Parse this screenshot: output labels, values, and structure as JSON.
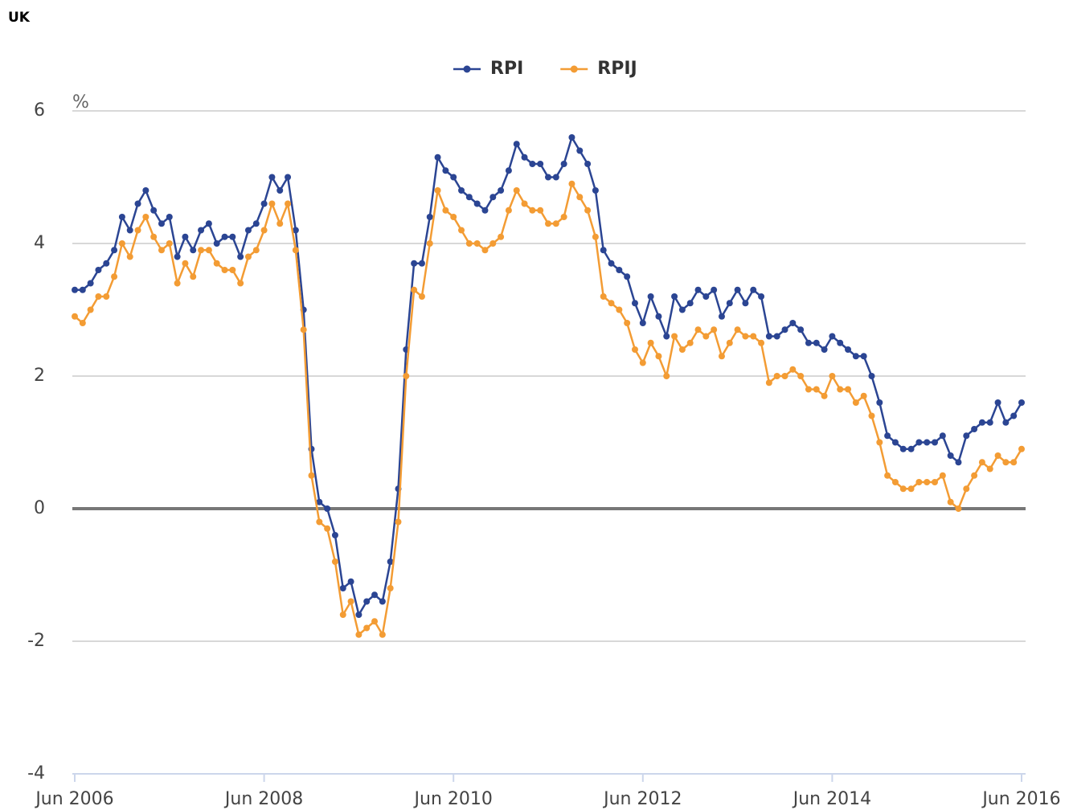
{
  "title": "UK",
  "chart_data": {
    "type": "line",
    "y_axis_label": "%",
    "categories": [
      "Jun 2006",
      null,
      null,
      null,
      null,
      null,
      null,
      null,
      null,
      null,
      null,
      null,
      null,
      null,
      null,
      null,
      null,
      null,
      null,
      null,
      null,
      null,
      null,
      null,
      "Jun 2008",
      null,
      null,
      null,
      null,
      null,
      null,
      null,
      null,
      null,
      null,
      null,
      null,
      null,
      null,
      null,
      null,
      null,
      null,
      null,
      null,
      null,
      null,
      null,
      "Jun 2010",
      null,
      null,
      null,
      null,
      null,
      null,
      null,
      null,
      null,
      null,
      null,
      null,
      null,
      null,
      null,
      null,
      null,
      null,
      null,
      null,
      null,
      null,
      null,
      "Jun 2012",
      null,
      null,
      null,
      null,
      null,
      null,
      null,
      null,
      null,
      null,
      null,
      null,
      null,
      null,
      null,
      null,
      null,
      null,
      null,
      null,
      null,
      null,
      null,
      "Jun 2014",
      null,
      null,
      null,
      null,
      null,
      null,
      null,
      null,
      null,
      null,
      null,
      null,
      null,
      null,
      null,
      null,
      null,
      null,
      null,
      null,
      null,
      null,
      null,
      "Jun 2016"
    ],
    "series": [
      {
        "name": "RPI",
        "color": "#2b4593",
        "values": [
          3.3,
          3.3,
          3.4,
          3.6,
          3.7,
          3.9,
          4.4,
          4.2,
          4.6,
          4.8,
          4.5,
          4.3,
          4.4,
          3.8,
          4.1,
          3.9,
          4.2,
          4.3,
          4.0,
          4.1,
          4.1,
          3.8,
          4.2,
          4.3,
          4.6,
          5.0,
          4.8,
          5.0,
          4.2,
          3.0,
          0.9,
          0.1,
          0.0,
          -0.4,
          -1.2,
          -1.1,
          -1.6,
          -1.4,
          -1.3,
          -1.4,
          -0.8,
          0.3,
          2.4,
          3.7,
          3.7,
          4.4,
          5.3,
          5.1,
          5.0,
          4.8,
          4.7,
          4.6,
          4.5,
          4.7,
          4.8,
          5.1,
          5.5,
          5.3,
          5.2,
          5.2,
          5.0,
          5.0,
          5.2,
          5.6,
          5.4,
          5.2,
          4.8,
          3.9,
          3.7,
          3.6,
          3.5,
          3.1,
          2.8,
          3.2,
          2.9,
          2.6,
          3.2,
          3.0,
          3.1,
          3.3,
          3.2,
          3.3,
          2.9,
          3.1,
          3.3,
          3.1,
          3.3,
          3.2,
          2.6,
          2.6,
          2.7,
          2.8,
          2.7,
          2.5,
          2.5,
          2.4,
          2.6,
          2.5,
          2.4,
          2.3,
          2.3,
          2.0,
          1.6,
          1.1,
          1.0,
          0.9,
          0.9,
          1.0,
          1.0,
          1.0,
          1.1,
          0.8,
          0.7,
          1.1,
          1.2,
          1.3,
          1.3,
          1.6,
          1.3,
          1.4,
          1.6
        ]
      },
      {
        "name": "RPIJ",
        "color": "#f39c34",
        "values": [
          2.9,
          2.8,
          3.0,
          3.2,
          3.2,
          3.5,
          4.0,
          3.8,
          4.2,
          4.4,
          4.1,
          3.9,
          4.0,
          3.4,
          3.7,
          3.5,
          3.9,
          3.9,
          3.7,
          3.6,
          3.6,
          3.4,
          3.8,
          3.9,
          4.2,
          4.6,
          4.3,
          4.6,
          3.9,
          2.7,
          0.5,
          -0.2,
          -0.3,
          -0.8,
          -1.6,
          -1.4,
          -1.9,
          -1.8,
          -1.7,
          -1.9,
          -1.2,
          -0.2,
          2.0,
          3.3,
          3.2,
          4.0,
          4.8,
          4.5,
          4.4,
          4.2,
          4.0,
          4.0,
          3.9,
          4.0,
          4.1,
          4.5,
          4.8,
          4.6,
          4.5,
          4.5,
          4.3,
          4.3,
          4.4,
          4.9,
          4.7,
          4.5,
          4.1,
          3.2,
          3.1,
          3.0,
          2.8,
          2.4,
          2.2,
          2.5,
          2.3,
          2.0,
          2.6,
          2.4,
          2.5,
          2.7,
          2.6,
          2.7,
          2.3,
          2.5,
          2.7,
          2.6,
          2.6,
          2.5,
          1.9,
          2.0,
          2.0,
          2.1,
          2.0,
          1.8,
          1.8,
          1.7,
          2.0,
          1.8,
          1.8,
          1.6,
          1.7,
          1.4,
          1.0,
          0.5,
          0.4,
          0.3,
          0.3,
          0.4,
          0.4,
          0.4,
          0.5,
          0.1,
          0.0,
          0.3,
          0.5,
          0.7,
          0.6,
          0.8,
          0.7,
          0.7,
          0.9
        ]
      }
    ],
    "ylim": [
      -4,
      6
    ],
    "yticks": [
      -4,
      -2,
      0,
      2,
      4,
      6
    ],
    "grid": true,
    "legend": "top"
  }
}
